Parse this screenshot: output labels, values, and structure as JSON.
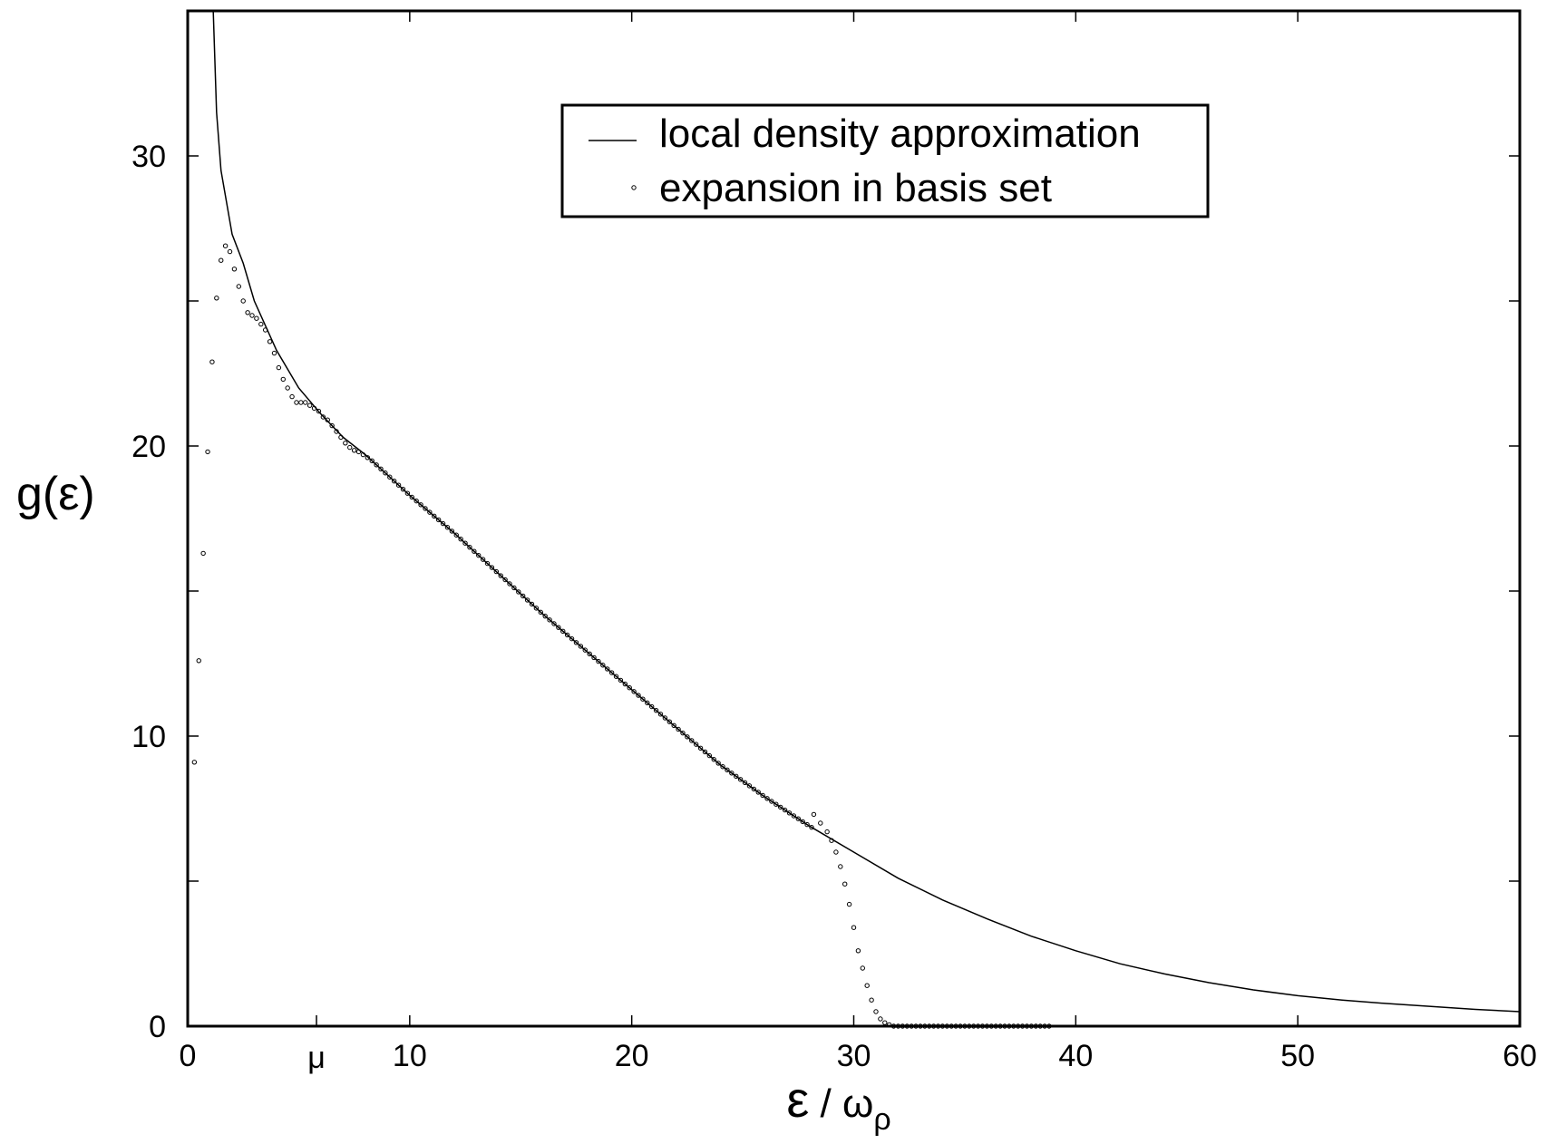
{
  "chart_data": {
    "type": "line",
    "title": "",
    "xlabel": {
      "main": "ε",
      "sep": " / ",
      "sym": "ω",
      "sub": "ρ"
    },
    "ylabel": "g(ε)",
    "xlim": [
      0,
      60
    ],
    "ylim": [
      0,
      35
    ],
    "x_ticks": [
      0,
      10,
      20,
      30,
      40,
      50,
      60
    ],
    "x_special_tick": {
      "value": 5.8,
      "label": "μ"
    },
    "y_ticks": [
      0,
      10,
      20,
      30
    ],
    "y_minor_ticks": [
      5,
      15,
      25
    ],
    "legend": {
      "position": "top-right"
    },
    "series": [
      {
        "name": "local density approximation",
        "style": "solid-line",
        "x": [
          1.15,
          1.3,
          1.5,
          2.0,
          2.5,
          3.0,
          4.0,
          5.0,
          6.0,
          7.0,
          8.0,
          9.0,
          10.0,
          12.0,
          14.0,
          16.0,
          18.0,
          20.0,
          22.0,
          24.0,
          26.0,
          28.0,
          30.0,
          32.0,
          34.0,
          36.0,
          38.0,
          40.0,
          42.0,
          44.0,
          46.0,
          48.0,
          50.0,
          52.0,
          54.0,
          56.0,
          58.0,
          60.0
        ],
        "y": [
          35.0,
          31.5,
          29.5,
          27.3,
          26.3,
          25.0,
          23.3,
          22.0,
          21.1,
          20.3,
          19.7,
          19.0,
          18.3,
          17.0,
          15.6,
          14.2,
          12.9,
          11.6,
          10.3,
          9.0,
          7.9,
          6.9,
          6.0,
          5.1,
          4.35,
          3.7,
          3.1,
          2.6,
          2.15,
          1.8,
          1.5,
          1.25,
          1.05,
          0.9,
          0.78,
          0.68,
          0.58,
          0.5
        ]
      },
      {
        "name": "expansion in basis set",
        "style": "open-circles",
        "x": [
          0.3,
          0.5,
          0.7,
          0.9,
          1.1,
          1.3,
          1.5,
          1.7,
          1.9,
          2.1,
          2.3,
          2.5,
          2.7,
          2.9,
          3.1,
          3.3,
          3.5,
          3.7,
          3.9,
          4.1,
          4.3,
          4.5,
          4.7,
          4.9,
          5.1,
          5.3,
          5.5,
          5.7,
          5.9,
          6.1,
          6.3,
          6.5,
          6.7,
          6.9,
          7.1,
          7.3,
          7.5,
          7.7,
          7.9,
          8.1,
          28.2,
          28.5,
          28.8,
          29.0,
          29.2,
          29.4,
          29.6,
          29.8,
          30.0,
          30.2,
          30.4,
          30.6,
          30.8,
          31.0,
          31.2,
          31.4,
          31.6,
          31.8
        ],
        "y": [
          9.1,
          12.6,
          16.3,
          19.8,
          22.9,
          25.1,
          26.4,
          26.9,
          26.7,
          26.1,
          25.5,
          25.0,
          24.6,
          24.5,
          24.4,
          24.2,
          24.0,
          23.6,
          23.2,
          22.7,
          22.3,
          22.0,
          21.7,
          21.5,
          21.5,
          21.5,
          21.4,
          21.3,
          21.2,
          21.0,
          20.9,
          20.7,
          20.5,
          20.3,
          20.1,
          19.95,
          19.85,
          19.8,
          19.7,
          19.6,
          7.3,
          7.0,
          6.7,
          6.4,
          6.0,
          5.5,
          4.9,
          4.2,
          3.4,
          2.6,
          2.0,
          1.4,
          0.9,
          0.5,
          0.25,
          0.12,
          0.05,
          0.0
        ]
      }
    ]
  }
}
